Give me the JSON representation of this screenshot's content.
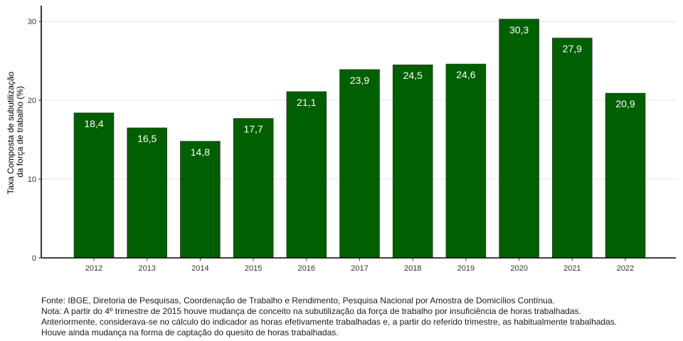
{
  "chart_data": {
    "type": "bar",
    "categories": [
      "2012",
      "2013",
      "2014",
      "2015",
      "2016",
      "2017",
      "2018",
      "2019",
      "2020",
      "2021",
      "2022"
    ],
    "values": [
      18.4,
      16.5,
      14.8,
      17.7,
      21.1,
      23.9,
      24.5,
      24.6,
      30.3,
      27.9,
      20.9
    ],
    "value_labels": [
      "18,4",
      "16,5",
      "14,8",
      "17,7",
      "21,1",
      "23,9",
      "24,5",
      "24,6",
      "30,3",
      "27,9",
      "20,9"
    ],
    "ylabel_lines": [
      "Taxa Composta de subutilização",
      "da força de trabalho (%)"
    ],
    "xlabel": "",
    "ylim": [
      0,
      32
    ],
    "yticks": [
      0,
      10,
      20,
      30
    ],
    "grid": true,
    "bar_color": "#005f00"
  },
  "footnote": {
    "lines": [
      "Fonte: IBGE, Diretoria de Pesquisas, Coordenação de Trabalho e Rendimento, Pesquisa Nacional por Amostra de Domicílios Contínua.",
      "Nota: A partir do 4º trimestre de 2015 houve mudança de conceito na subutilização da força de trabalho por insuficiência de horas trabalhadas.",
      "Anteriormente, considerava-se no cálculo do indicador as horas efetivamente trabalhadas e, a partir do referido trimestre, as habitualmente trabalhadas.",
      "Houve ainda mudança na forma de captação do quesito de horas trabalhadas."
    ]
  }
}
